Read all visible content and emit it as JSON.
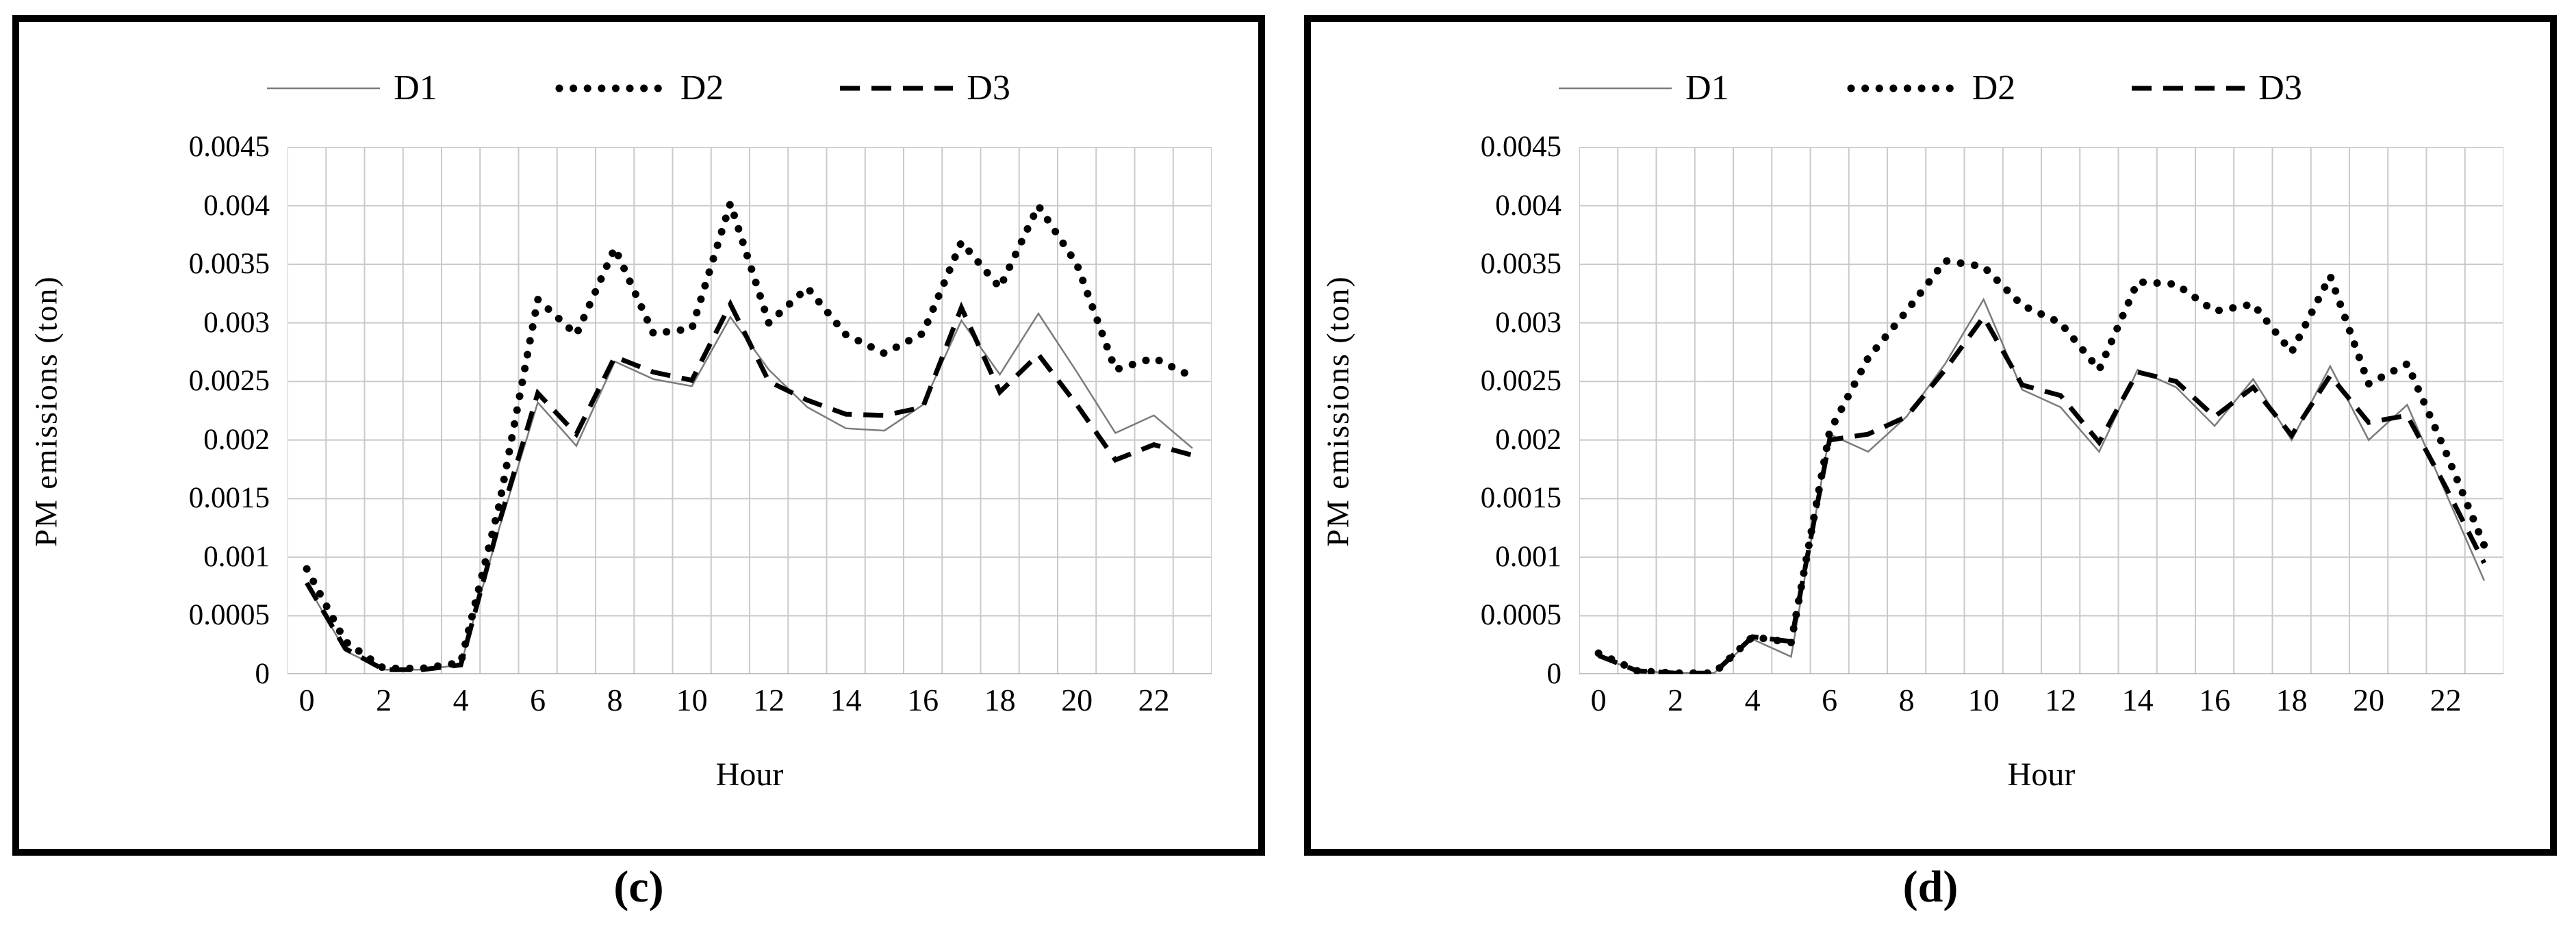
{
  "page": {
    "background": "#ffffff"
  },
  "colors": {
    "d1_line": "#7b7b7b",
    "d2_line": "#000000",
    "d3_line": "#000000",
    "gridline": "#cacaca",
    "axis_line": "#a6a6a6",
    "panel_border": "#000000"
  },
  "chart_data": [
    {
      "type": "line",
      "caption": "(c)",
      "xlabel": "Hour",
      "ylabel": "PM emissions (ton)",
      "ylim": [
        0,
        0.0045
      ],
      "grid": "on",
      "legend_position": "top",
      "x": [
        0,
        1,
        2,
        3,
        4,
        5,
        6,
        7,
        8,
        9,
        10,
        11,
        12,
        13,
        14,
        15,
        16,
        17,
        18,
        19,
        20,
        21,
        22,
        23
      ],
      "x_tick_labels": [
        "0",
        "2",
        "4",
        "6",
        "8",
        "10",
        "12",
        "14",
        "16",
        "18",
        "20",
        "22"
      ],
      "y_tick_labels": [
        "0.0045",
        "0.004",
        "0.0035",
        "0.003",
        "0.0025",
        "0.002",
        "0.0015",
        "0.001",
        "0.0005",
        "0"
      ],
      "legend": [
        {
          "name": "D1",
          "style_key": "d1",
          "style": "thin solid gray line"
        },
        {
          "name": "D2",
          "style_key": "d2",
          "style": "heavy dotted black line"
        },
        {
          "name": "D3",
          "style_key": "d3",
          "style": "dashed black line"
        }
      ],
      "series": [
        {
          "name": "D1",
          "style_key": "d1",
          "values": [
            0.00077,
            0.0002,
            4e-05,
            4e-05,
            8e-05,
            0.00125,
            0.00232,
            0.00195,
            0.00267,
            0.00252,
            0.00246,
            0.00305,
            0.0026,
            0.00228,
            0.0021,
            0.00208,
            0.0023,
            0.00302,
            0.00256,
            0.00308,
            0.00258,
            0.00206,
            0.00221,
            0.00193
          ]
        },
        {
          "name": "D2",
          "style_key": "d2",
          "values": [
            0.0009,
            0.00028,
            5e-05,
            5e-05,
            0.0001,
            0.00145,
            0.0032,
            0.0029,
            0.00364,
            0.00291,
            0.00295,
            0.00402,
            0.003,
            0.0033,
            0.0029,
            0.00274,
            0.00291,
            0.00369,
            0.0033,
            0.004,
            0.0035,
            0.0026,
            0.0027,
            0.00254
          ]
        },
        {
          "name": "D3",
          "style_key": "d3",
          "values": [
            0.00078,
            0.00022,
            4e-05,
            4e-05,
            8e-05,
            0.0013,
            0.0024,
            0.00205,
            0.00271,
            0.00258,
            0.00251,
            0.00316,
            0.0025,
            0.00234,
            0.00222,
            0.00221,
            0.00228,
            0.00313,
            0.00241,
            0.00273,
            0.0023,
            0.00183,
            0.00196,
            0.00187
          ]
        }
      ]
    },
    {
      "type": "line",
      "caption": "(d)",
      "xlabel": "Hour",
      "ylabel": "PM emissions (ton)",
      "ylim": [
        0,
        0.0045
      ],
      "grid": "on",
      "legend_position": "top",
      "x": [
        0,
        1,
        2,
        3,
        4,
        5,
        6,
        7,
        8,
        9,
        10,
        11,
        12,
        13,
        14,
        15,
        16,
        17,
        18,
        19,
        20,
        21,
        22,
        23
      ],
      "x_tick_labels": [
        "0",
        "2",
        "4",
        "6",
        "8",
        "10",
        "12",
        "14",
        "16",
        "18",
        "20",
        "22"
      ],
      "y_tick_labels": [
        "0.0045",
        "0.004",
        "0.0035",
        "0.003",
        "0.0025",
        "0.002",
        "0.0015",
        "0.001",
        "0.0005",
        "0"
      ],
      "legend": [
        {
          "name": "D1",
          "style_key": "d1",
          "style": "thin solid gray line"
        },
        {
          "name": "D2",
          "style_key": "d2",
          "style": "heavy dotted black line"
        },
        {
          "name": "D3",
          "style_key": "d3",
          "style": "dashed black line"
        }
      ],
      "series": [
        {
          "name": "D1",
          "style_key": "d1",
          "values": [
            0.00015,
            3e-05,
            1e-05,
            1e-05,
            0.0003,
            0.00015,
            0.00205,
            0.0019,
            0.0022,
            0.00265,
            0.0032,
            0.00243,
            0.00228,
            0.0019,
            0.0026,
            0.00245,
            0.00212,
            0.00252,
            0.002,
            0.00263,
            0.002,
            0.0023,
            0.00155,
            0.0008
          ]
        },
        {
          "name": "D2",
          "style_key": "d2",
          "values": [
            0.00018,
            3e-05,
            1e-05,
            1e-05,
            0.00032,
            0.00027,
            0.00207,
            0.0027,
            0.0031,
            0.00353,
            0.00348,
            0.00315,
            0.003,
            0.0026,
            0.00335,
            0.00333,
            0.0031,
            0.00316,
            0.00275,
            0.0034,
            0.00248,
            0.00265,
            0.0019,
            0.0011
          ]
        },
        {
          "name": "D3",
          "style_key": "d3",
          "values": [
            0.00016,
            3e-05,
            1e-05,
            1e-05,
            0.00032,
            0.00028,
            0.002,
            0.00205,
            0.0022,
            0.0026,
            0.00305,
            0.00247,
            0.00238,
            0.00198,
            0.00258,
            0.0025,
            0.0022,
            0.00245,
            0.00204,
            0.00255,
            0.00215,
            0.00221,
            0.0016,
            0.00095
          ]
        }
      ]
    }
  ]
}
